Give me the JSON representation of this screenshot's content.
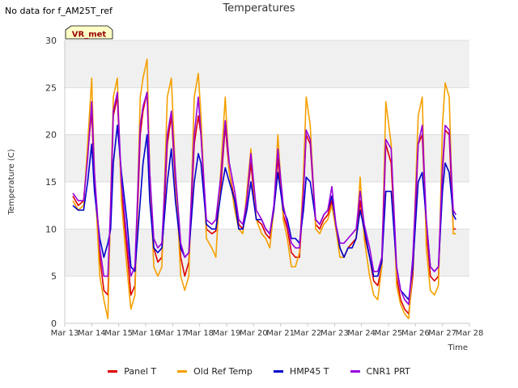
{
  "note": "No data for f_AM25T_ref",
  "chart_data": {
    "type": "line",
    "title": "Temperatures",
    "xlabel": "Time",
    "ylabel": "Temperature (C)",
    "ylim": [
      0,
      30
    ],
    "xlim": [
      13,
      28
    ],
    "yticks": [
      0,
      5,
      10,
      15,
      20,
      25,
      30
    ],
    "xticks": [
      {
        "v": 13,
        "label": "Mar 13"
      },
      {
        "v": 14,
        "label": "Mar 14"
      },
      {
        "v": 15,
        "label": "Mar 15"
      },
      {
        "v": 16,
        "label": "Mar 16"
      },
      {
        "v": 17,
        "label": "Mar 17"
      },
      {
        "v": 18,
        "label": "Mar 18"
      },
      {
        "v": 19,
        "label": "Mar 19"
      },
      {
        "v": 20,
        "label": "Mar 20"
      },
      {
        "v": 21,
        "label": "Mar 21"
      },
      {
        "v": 22,
        "label": "Mar 22"
      },
      {
        "v": 23,
        "label": "Mar 23"
      },
      {
        "v": 24,
        "label": "Mar 24"
      },
      {
        "v": 25,
        "label": "Mar 25"
      },
      {
        "v": 26,
        "label": "Mar 26"
      },
      {
        "v": 27,
        "label": "Mar 27"
      },
      {
        "v": 28,
        "label": "Mar 28"
      }
    ],
    "grid": true,
    "legend_position": "bottom",
    "annotation": "VR_met",
    "series": [
      {
        "name": "Panel T",
        "color": "#dd0000",
        "x": [
          13.3,
          13.5,
          13.7,
          13.85,
          14.0,
          14.1,
          14.3,
          14.45,
          14.6,
          14.7,
          14.8,
          14.95,
          15.1,
          15.3,
          15.45,
          15.6,
          15.8,
          15.9,
          16.05,
          16.15,
          16.3,
          16.45,
          16.6,
          16.8,
          16.95,
          17.1,
          17.3,
          17.45,
          17.6,
          17.8,
          17.95,
          18.05,
          18.25,
          18.45,
          18.6,
          18.8,
          18.95,
          19.1,
          19.3,
          19.45,
          19.6,
          19.75,
          19.9,
          20.1,
          20.3,
          20.45,
          20.6,
          20.75,
          20.9,
          21.1,
          21.25,
          21.4,
          21.55,
          21.7,
          21.85,
          21.95,
          22.1,
          22.3,
          22.45,
          22.6,
          22.75,
          22.9,
          23.05,
          23.2,
          23.35,
          23.5,
          23.65,
          23.8,
          23.95,
          24.1,
          24.3,
          24.45,
          24.6,
          24.75,
          24.9,
          25.1,
          25.3,
          25.45,
          25.6,
          25.75,
          25.9,
          26.1,
          26.25,
          26.4,
          26.55,
          26.7,
          26.85,
          27.0,
          27.1,
          27.25,
          27.4,
          27.5
        ],
        "y": [
          13.5,
          12.5,
          13.0,
          18.0,
          22.5,
          15.0,
          7.0,
          3.5,
          3.0,
          12.0,
          22.0,
          24.0,
          14.0,
          8.0,
          3.0,
          4.0,
          20.0,
          22.5,
          24.5,
          16.0,
          8.0,
          6.5,
          7.0,
          19.0,
          22.0,
          15.0,
          7.0,
          5.0,
          6.5,
          19.0,
          22.0,
          20.0,
          10.0,
          9.5,
          9.8,
          15.0,
          21.0,
          16.0,
          13.0,
          10.5,
          10.0,
          13.0,
          17.0,
          11.0,
          10.5,
          9.5,
          9.0,
          12.0,
          17.5,
          11.5,
          10.0,
          7.5,
          7.0,
          7.0,
          14.0,
          20.0,
          19.0,
          10.5,
          10.0,
          11.0,
          11.5,
          13.0,
          10.0,
          8.0,
          7.0,
          8.0,
          8.5,
          9.0,
          13.0,
          9.5,
          7.0,
          4.5,
          4.0,
          6.0,
          19.0,
          17.0,
          5.0,
          2.5,
          1.5,
          1.0,
          5.0,
          19.0,
          20.0,
          10.0,
          5.0,
          4.5,
          5.0,
          16.0,
          20.5,
          20.0,
          10.0,
          10.0
        ]
      },
      {
        "name": "Old Ref Temp",
        "color": "#f5a000",
        "x": [
          13.3,
          13.5,
          13.7,
          13.85,
          14.0,
          14.1,
          14.3,
          14.45,
          14.6,
          14.7,
          14.8,
          14.95,
          15.1,
          15.3,
          15.45,
          15.6,
          15.8,
          15.9,
          16.05,
          16.15,
          16.3,
          16.45,
          16.6,
          16.8,
          16.95,
          17.1,
          17.3,
          17.45,
          17.6,
          17.8,
          17.95,
          18.05,
          18.25,
          18.45,
          18.6,
          18.8,
          18.95,
          19.1,
          19.3,
          19.45,
          19.6,
          19.75,
          19.9,
          20.1,
          20.3,
          20.45,
          20.6,
          20.75,
          20.9,
          21.1,
          21.25,
          21.4,
          21.55,
          21.7,
          21.85,
          21.95,
          22.1,
          22.3,
          22.45,
          22.6,
          22.75,
          22.9,
          23.05,
          23.2,
          23.35,
          23.5,
          23.65,
          23.8,
          23.95,
          24.1,
          24.3,
          24.45,
          24.6,
          24.75,
          24.9,
          25.1,
          25.3,
          25.45,
          25.6,
          25.75,
          25.9,
          26.1,
          26.25,
          26.4,
          26.55,
          26.7,
          26.85,
          27.0,
          27.1,
          27.25,
          27.4,
          27.5
        ],
        "y": [
          13.0,
          12.0,
          12.5,
          19.0,
          26.0,
          16.0,
          5.0,
          2.5,
          0.5,
          13.0,
          24.0,
          26.0,
          13.0,
          6.0,
          1.5,
          3.0,
          24.0,
          26.0,
          28.0,
          16.0,
          6.0,
          5.0,
          6.0,
          24.0,
          26.0,
          16.0,
          5.0,
          3.5,
          5.0,
          24.0,
          26.5,
          22.0,
          9.0,
          8.0,
          7.0,
          17.0,
          24.0,
          16.0,
          12.0,
          10.0,
          9.5,
          14.0,
          18.5,
          11.0,
          9.5,
          9.0,
          8.0,
          12.0,
          20.0,
          11.0,
          9.0,
          6.0,
          6.0,
          7.5,
          16.0,
          24.0,
          21.0,
          10.0,
          9.5,
          10.5,
          11.0,
          12.5,
          10.0,
          7.0,
          7.0,
          8.0,
          8.0,
          9.0,
          15.5,
          9.0,
          5.0,
          3.0,
          2.5,
          6.0,
          23.5,
          19.0,
          4.0,
          2.0,
          1.0,
          0.5,
          6.0,
          22.0,
          24.0,
          8.0,
          3.5,
          3.0,
          4.0,
          21.0,
          25.5,
          24.0,
          9.5,
          9.5
        ]
      },
      {
        "name": "HMP45 T",
        "color": "#0000cc",
        "x": [
          13.3,
          13.5,
          13.7,
          13.85,
          14.0,
          14.1,
          14.3,
          14.45,
          14.6,
          14.7,
          14.8,
          14.95,
          15.1,
          15.3,
          15.45,
          15.6,
          15.8,
          15.9,
          16.05,
          16.15,
          16.3,
          16.45,
          16.6,
          16.8,
          16.95,
          17.1,
          17.3,
          17.45,
          17.6,
          17.8,
          17.95,
          18.05,
          18.25,
          18.45,
          18.6,
          18.8,
          18.95,
          19.1,
          19.3,
          19.45,
          19.6,
          19.75,
          19.9,
          20.1,
          20.3,
          20.45,
          20.6,
          20.75,
          20.9,
          21.1,
          21.25,
          21.4,
          21.55,
          21.7,
          21.85,
          21.95,
          22.1,
          22.3,
          22.45,
          22.6,
          22.75,
          22.9,
          23.05,
          23.2,
          23.35,
          23.5,
          23.65,
          23.8,
          23.95,
          24.1,
          24.3,
          24.45,
          24.6,
          24.75,
          24.9,
          25.1,
          25.3,
          25.45,
          25.6,
          25.75,
          25.9,
          26.1,
          26.25,
          26.4,
          26.55,
          26.7,
          26.85,
          27.0,
          27.1,
          27.25,
          27.4,
          27.5
        ],
        "y": [
          12.5,
          12.0,
          12.0,
          15.0,
          19.0,
          14.0,
          9.0,
          7.0,
          8.5,
          10.0,
          17.0,
          21.0,
          16.0,
          11.0,
          6.0,
          5.5,
          13.0,
          17.0,
          20.0,
          13.0,
          8.0,
          7.5,
          8.0,
          15.0,
          18.5,
          13.0,
          8.0,
          7.0,
          7.5,
          15.0,
          18.0,
          17.0,
          10.5,
          10.0,
          10.0,
          14.0,
          16.5,
          15.0,
          13.0,
          10.0,
          10.0,
          12.0,
          15.0,
          11.0,
          11.0,
          10.0,
          9.5,
          12.0,
          16.0,
          12.0,
          11.0,
          9.0,
          9.0,
          8.5,
          12.0,
          15.5,
          15.0,
          11.0,
          10.5,
          11.5,
          12.0,
          13.5,
          10.5,
          8.0,
          7.0,
          8.0,
          8.0,
          9.0,
          12.0,
          10.0,
          7.0,
          5.0,
          5.0,
          6.5,
          14.0,
          14.0,
          6.0,
          3.5,
          3.0,
          2.5,
          6.0,
          15.0,
          16.0,
          11.0,
          6.0,
          5.5,
          6.0,
          14.0,
          17.0,
          16.0,
          11.5,
          11.0
        ]
      },
      {
        "name": "CNR1 PRT",
        "color": "#9900dd",
        "x": [
          13.3,
          13.5,
          13.7,
          13.85,
          14.0,
          14.1,
          14.3,
          14.45,
          14.6,
          14.7,
          14.8,
          14.95,
          15.1,
          15.3,
          15.45,
          15.6,
          15.8,
          15.9,
          16.05,
          16.15,
          16.3,
          16.45,
          16.6,
          16.8,
          16.95,
          17.1,
          17.3,
          17.45,
          17.6,
          17.8,
          17.95,
          18.05,
          18.25,
          18.45,
          18.6,
          18.8,
          18.95,
          19.1,
          19.3,
          19.45,
          19.6,
          19.75,
          19.9,
          20.1,
          20.3,
          20.45,
          20.6,
          20.75,
          20.9,
          21.1,
          21.25,
          21.4,
          21.55,
          21.7,
          21.85,
          21.95,
          22.1,
          22.3,
          22.45,
          22.6,
          22.75,
          22.9,
          23.05,
          23.2,
          23.35,
          23.5,
          23.65,
          23.8,
          23.95,
          24.1,
          24.3,
          24.45,
          24.6,
          24.75,
          24.9,
          25.1,
          25.3,
          25.45,
          25.6,
          25.75,
          25.9,
          26.1,
          26.25,
          26.4,
          26.55,
          26.7,
          26.85,
          27.0,
          27.1,
          27.25,
          27.4,
          27.5
        ],
        "y": [
          13.8,
          13.0,
          13.0,
          17.5,
          23.5,
          16.0,
          8.0,
          5.0,
          5.0,
          12.5,
          22.5,
          24.5,
          15.0,
          9.0,
          5.0,
          6.0,
          21.0,
          23.0,
          24.5,
          16.0,
          9.0,
          8.0,
          8.5,
          20.0,
          22.5,
          16.0,
          8.5,
          7.0,
          7.5,
          20.0,
          24.0,
          20.0,
          11.0,
          10.5,
          11.0,
          16.0,
          21.5,
          17.0,
          14.0,
          11.0,
          10.5,
          13.0,
          18.0,
          12.0,
          11.0,
          10.0,
          9.5,
          12.5,
          18.5,
          12.5,
          10.5,
          8.5,
          8.0,
          8.0,
          14.0,
          20.5,
          19.5,
          11.0,
          10.5,
          11.5,
          12.0,
          14.5,
          10.5,
          8.5,
          8.5,
          9.0,
          9.5,
          10.0,
          14.0,
          10.5,
          8.0,
          5.5,
          5.5,
          7.0,
          19.5,
          18.5,
          6.0,
          3.5,
          2.5,
          2.0,
          7.0,
          19.0,
          21.0,
          11.0,
          6.0,
          5.5,
          6.0,
          16.5,
          21.0,
          20.5,
          12.0,
          11.5
        ]
      }
    ]
  }
}
